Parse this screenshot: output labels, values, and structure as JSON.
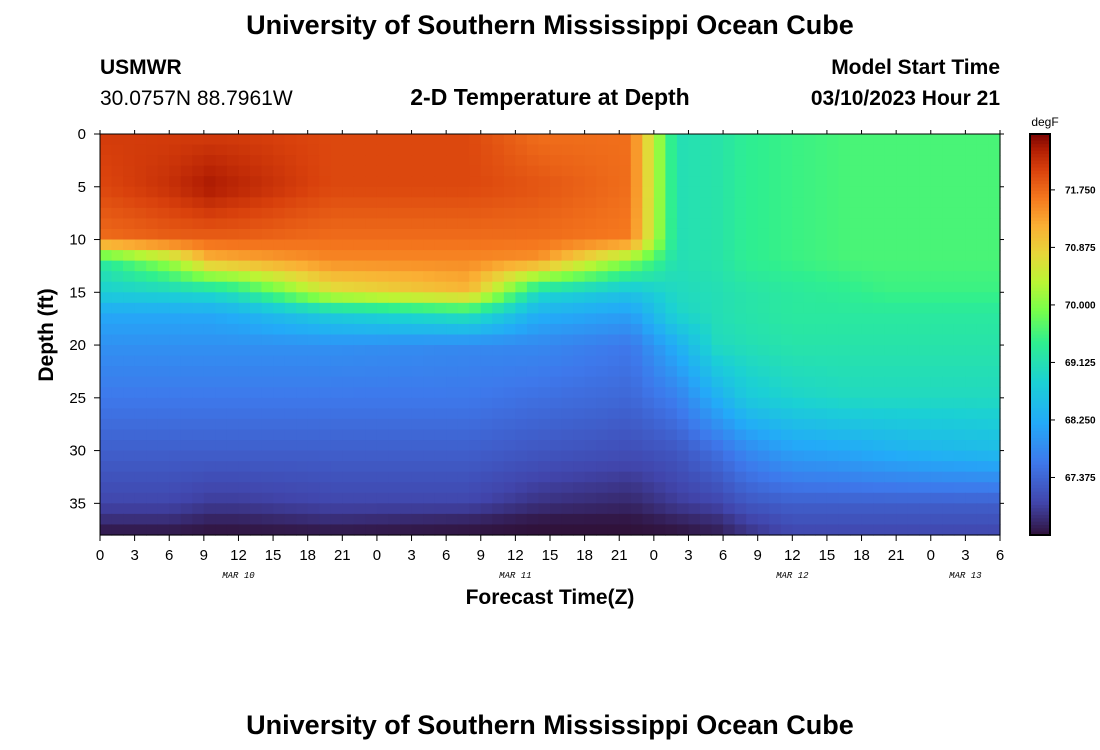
{
  "header": {
    "title": "University of Southern Mississippi Ocean Cube",
    "station": "USMWR",
    "coords": "30.0757N  88.7961W",
    "subtitle": "2-D Temperature at Depth",
    "model_label": "Model Start Time",
    "model_time": "03/10/2023 Hour 21"
  },
  "footer": {
    "title": "University of Southern Mississippi Ocean Cube"
  },
  "chart_data": {
    "type": "heatmap",
    "title": "2-D Temperature at Depth",
    "xlabel": "Forecast Time(Z)",
    "ylabel": "Depth (ft)",
    "x_range_hours": [
      0,
      78
    ],
    "x_ticks": [
      0,
      3,
      6,
      9,
      12,
      15,
      18,
      21,
      24,
      27,
      30,
      33,
      36,
      39,
      42,
      45,
      48,
      51,
      54,
      57,
      60,
      63,
      66,
      69,
      72,
      75,
      78
    ],
    "x_tick_labels": [
      "0",
      "3",
      "6",
      "9",
      "12",
      "15",
      "18",
      "21",
      "0",
      "3",
      "6",
      "9",
      "12",
      "15",
      "18",
      "21",
      "0",
      "3",
      "6",
      "9",
      "12",
      "15",
      "18",
      "21",
      "0",
      "3",
      "6"
    ],
    "date_labels": [
      {
        "text": "MAR 10",
        "hour": 12
      },
      {
        "text": "MAR 11",
        "hour": 36
      },
      {
        "text": "MAR 12",
        "hour": 60
      },
      {
        "text": "MAR 13",
        "hour": 75
      }
    ],
    "y_range_ft": [
      0,
      38
    ],
    "y_ticks": [
      0,
      5,
      10,
      15,
      20,
      25,
      30,
      35
    ],
    "y_tick_labels": [
      "0",
      "5",
      "10",
      "15",
      "20",
      "25",
      "30",
      "35"
    ],
    "colorbar": {
      "unit": "degF",
      "min": 66.5,
      "max": 72.6,
      "ticks": [
        71.75,
        70.875,
        70.0,
        69.125,
        68.25,
        67.375
      ],
      "tick_labels": [
        "71.750",
        "70.875",
        "70.000",
        "69.125",
        "68.250",
        "67.375"
      ]
    },
    "grid_resolution": {
      "nx": 78,
      "ny": 38
    },
    "grid_hours": [
      0,
      6,
      9.5,
      12,
      20,
      32,
      38,
      46,
      50,
      53.5,
      56,
      60,
      65,
      68,
      72,
      78
    ],
    "grid_depths": [
      0,
      5,
      10,
      12,
      15,
      17,
      20,
      25,
      30,
      35,
      37,
      38
    ],
    "temperature_grid": [
      [
        72.1,
        72.1,
        72.1,
        72.1,
        72.0,
        72.0,
        71.7,
        71.7,
        69.1,
        69.2,
        69.4,
        69.5,
        69.6,
        69.6,
        69.6,
        69.6
      ],
      [
        72.0,
        72.2,
        72.4,
        72.3,
        72.0,
        72.0,
        71.9,
        71.7,
        69.1,
        69.2,
        69.4,
        69.5,
        69.6,
        69.6,
        69.6,
        69.6
      ],
      [
        71.7,
        71.8,
        71.8,
        71.8,
        71.7,
        71.7,
        71.7,
        71.6,
        69.1,
        69.2,
        69.4,
        69.5,
        69.6,
        69.6,
        69.6,
        69.6
      ],
      [
        69.3,
        70.2,
        71.1,
        71.2,
        71.5,
        71.5,
        71.4,
        70.0,
        69.1,
        69.2,
        69.4,
        69.5,
        69.6,
        69.6,
        69.6,
        69.6
      ],
      [
        68.8,
        68.9,
        69.0,
        69.2,
        70.6,
        71.1,
        69.0,
        68.6,
        69.0,
        69.1,
        69.2,
        69.3,
        69.4,
        69.5,
        69.5,
        69.5
      ],
      [
        68.2,
        68.2,
        68.2,
        68.3,
        68.8,
        69.2,
        68.3,
        68.1,
        68.9,
        69.1,
        69.2,
        69.3,
        69.3,
        69.3,
        69.3,
        69.3
      ],
      [
        67.9,
        67.9,
        67.9,
        67.9,
        67.9,
        67.8,
        67.8,
        67.6,
        68.3,
        69.0,
        69.1,
        69.2,
        69.2,
        69.2,
        69.2,
        69.2
      ],
      [
        67.6,
        67.6,
        67.6,
        67.6,
        67.6,
        67.6,
        67.5,
        67.4,
        67.7,
        68.3,
        68.7,
        68.9,
        69.0,
        69.0,
        69.0,
        69.0
      ],
      [
        67.3,
        67.3,
        67.3,
        67.3,
        67.3,
        67.3,
        67.2,
        67.1,
        67.2,
        67.5,
        67.8,
        68.1,
        68.2,
        68.3,
        68.4,
        68.5
      ],
      [
        67.0,
        67.0,
        66.9,
        66.9,
        67.0,
        67.0,
        66.8,
        66.7,
        66.9,
        67.0,
        67.2,
        67.3,
        67.3,
        67.3,
        67.3,
        67.3
      ],
      [
        66.7,
        66.7,
        66.6,
        66.6,
        66.7,
        66.6,
        66.5,
        66.5,
        66.6,
        66.7,
        66.9,
        67.1,
        67.1,
        67.1,
        67.1,
        67.1
      ],
      [
        66.5,
        66.5,
        66.5,
        66.5,
        66.5,
        66.5,
        66.5,
        66.5,
        66.5,
        66.6,
        66.8,
        67.0,
        67.0,
        67.0,
        67.0,
        67.0
      ]
    ]
  },
  "colors": {
    "axis": "#000000",
    "background": "#ffffff"
  }
}
